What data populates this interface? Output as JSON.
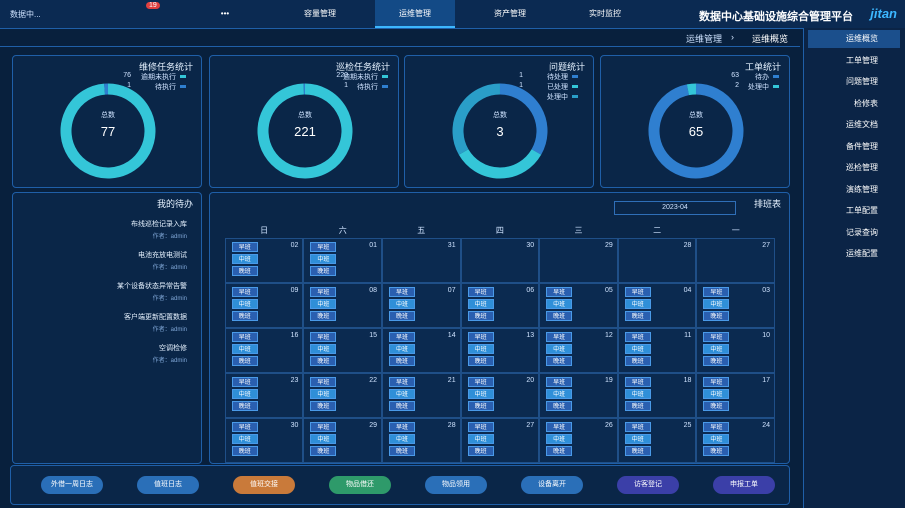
{
  "header": {
    "logo": "jitan",
    "title": "数据中心基础设施综合管理平台",
    "nav": [
      "实时监控",
      "资产管理",
      "运维管理",
      "容量管理",
      "•••"
    ],
    "active_nav": 2,
    "badge": "19",
    "user": "数据中..."
  },
  "sidebar": {
    "items": [
      "运维概览",
      "工单管理",
      "问题管理",
      "检修表",
      "运维文档",
      "备件管理",
      "巡检管理",
      "演练管理",
      "工单配置",
      "记录查询",
      "运维配置"
    ],
    "active": 0
  },
  "breadcrumb": [
    "运维管理",
    "运维概览"
  ],
  "cards": [
    {
      "title": "工单统计",
      "total_label": "总数",
      "total": "65",
      "series": [
        {
          "name": "待办",
          "value": 63,
          "color": "#2f7fd0"
        },
        {
          "name": "处理中",
          "value": 2,
          "color": "#34c6d8"
        }
      ]
    },
    {
      "title": "问题统计",
      "total_label": "总数",
      "total": "3",
      "series": [
        {
          "name": "待处理",
          "value": 1,
          "color": "#2f7fd0"
        },
        {
          "name": "已处理",
          "value": 1,
          "color": "#34c6d8"
        },
        {
          "name": "处理中",
          "value": 1,
          "color": "#2a9ec8"
        }
      ]
    },
    {
      "title": "巡检任务统计",
      "total_label": "总数",
      "total": "221",
      "series": [
        {
          "name": "逾期未执行",
          "value": 220,
          "color": "#34c6d8"
        },
        {
          "name": "待执行",
          "value": 1,
          "color": "#2f7fd0"
        }
      ]
    },
    {
      "title": "维修任务统计",
      "total_label": "总数",
      "total": "77",
      "series": [
        {
          "name": "逾期未执行",
          "value": 76,
          "color": "#34c6d8"
        },
        {
          "name": "待执行",
          "value": 1,
          "color": "#2f7fd0"
        }
      ]
    }
  ],
  "calendar": {
    "title": "排班表",
    "month": "2023-04",
    "weekdays": [
      "一",
      "二",
      "三",
      "四",
      "五",
      "六",
      "日"
    ],
    "weeks": [
      [
        {
          "day": "27",
          "shifts": []
        },
        {
          "day": "28",
          "shifts": []
        },
        {
          "day": "29",
          "shifts": []
        },
        {
          "day": "30",
          "shifts": []
        },
        {
          "day": "31",
          "shifts": []
        },
        {
          "day": "01",
          "shifts": [
            "早班",
            "中班",
            "晚班"
          ]
        },
        {
          "day": "02",
          "shifts": [
            "早班",
            "中班",
            "晚班"
          ]
        }
      ],
      [
        {
          "day": "03",
          "shifts": [
            "早班",
            "中班",
            "晚班"
          ]
        },
        {
          "day": "04",
          "shifts": [
            "早班",
            "中班",
            "晚班"
          ]
        },
        {
          "day": "05",
          "shifts": [
            "早班",
            "中班",
            "晚班"
          ]
        },
        {
          "day": "06",
          "shifts": [
            "早班",
            "中班",
            "晚班"
          ]
        },
        {
          "day": "07",
          "shifts": [
            "早班",
            "中班",
            "晚班"
          ]
        },
        {
          "day": "08",
          "shifts": [
            "早班",
            "中班",
            "晚班"
          ]
        },
        {
          "day": "09",
          "shifts": [
            "早班",
            "中班",
            "晚班"
          ]
        }
      ],
      [
        {
          "day": "10",
          "shifts": [
            "早班",
            "中班",
            "晚班"
          ]
        },
        {
          "day": "11",
          "shifts": [
            "早班",
            "中班",
            "晚班"
          ]
        },
        {
          "day": "12",
          "shifts": [
            "早班",
            "中班",
            "晚班"
          ]
        },
        {
          "day": "13",
          "shifts": [
            "早班",
            "中班",
            "晚班"
          ]
        },
        {
          "day": "14",
          "shifts": [
            "早班",
            "中班",
            "晚班"
          ]
        },
        {
          "day": "15",
          "shifts": [
            "早班",
            "中班",
            "晚班"
          ]
        },
        {
          "day": "16",
          "shifts": [
            "早班",
            "中班",
            "晚班"
          ]
        }
      ],
      [
        {
          "day": "17",
          "shifts": [
            "早班",
            "中班",
            "晚班"
          ]
        },
        {
          "day": "18",
          "shifts": [
            "早班",
            "中班",
            "晚班"
          ]
        },
        {
          "day": "19",
          "shifts": [
            "早班",
            "中班",
            "晚班"
          ]
        },
        {
          "day": "20",
          "shifts": [
            "早班",
            "中班",
            "晚班"
          ]
        },
        {
          "day": "21",
          "shifts": [
            "早班",
            "中班",
            "晚班"
          ]
        },
        {
          "day": "22",
          "shifts": [
            "早班",
            "中班",
            "晚班"
          ]
        },
        {
          "day": "23",
          "shifts": [
            "早班",
            "中班",
            "晚班"
          ]
        }
      ],
      [
        {
          "day": "24",
          "shifts": [
            "早班",
            "中班",
            "晚班"
          ]
        },
        {
          "day": "25",
          "shifts": [
            "早班",
            "中班",
            "晚班"
          ]
        },
        {
          "day": "26",
          "shifts": [
            "早班",
            "中班",
            "晚班"
          ]
        },
        {
          "day": "27",
          "shifts": [
            "早班",
            "中班",
            "晚班"
          ]
        },
        {
          "day": "28",
          "shifts": [
            "早班",
            "中班",
            "晚班"
          ]
        },
        {
          "day": "29",
          "shifts": [
            "早班",
            "中班",
            "晚班"
          ]
        },
        {
          "day": "30",
          "shifts": [
            "早班",
            "中班",
            "晚班"
          ]
        }
      ]
    ]
  },
  "tasks": {
    "title": "我的待办",
    "items": [
      {
        "title": "布线巡检记录入库",
        "author": "作者：admin"
      },
      {
        "title": "电池充放电测试",
        "author": "作者：admin"
      },
      {
        "title": "某个设备状态异常告警",
        "author": "作者：admin"
      },
      {
        "title": "客户端更新配置数据",
        "author": "作者：admin"
      },
      {
        "title": "空调检修",
        "author": "作者：admin"
      }
    ]
  },
  "actions": [
    {
      "label": "申报工单",
      "color": "#3b3fa8"
    },
    {
      "label": "访客登记",
      "color": "#3b3fa8"
    },
    {
      "label": "设备离开",
      "color": "#2a6fb8"
    },
    {
      "label": "物品领用",
      "color": "#2a6fb8"
    },
    {
      "label": "物品借还",
      "color": "#2e9a6a"
    },
    {
      "label": "值班交接",
      "color": "#c97a3a"
    },
    {
      "label": "值班日志",
      "color": "#2a6fb8"
    },
    {
      "label": "外借一周日志",
      "color": "#2a6fb8"
    }
  ]
}
